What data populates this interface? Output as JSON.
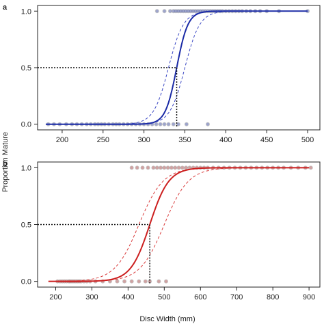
{
  "figure": {
    "shared_ylabel": "Proportion Mature",
    "shared_xlabel": "Disc Width (mm)"
  },
  "chart_data": [
    {
      "panel": "a",
      "type": "scatter",
      "title": "",
      "xlabel": "",
      "ylabel": "",
      "xlim": [
        170,
        515
      ],
      "ylim": [
        -0.05,
        1.05
      ],
      "xticks": [
        200,
        250,
        300,
        350,
        400,
        450,
        500
      ],
      "yticks": [
        0.0,
        0.5,
        1.0
      ],
      "tick_labels_y": [
        "0.0",
        "0.5",
        "1.0"
      ],
      "tick_labels_x": [
        "200",
        "250",
        "300",
        "350",
        "400",
        "450",
        "500"
      ],
      "line_color": "#1a2aa6",
      "ci_color": "#3a47c4",
      "point_color": "#6f7fd8",
      "fit_range": [
        180,
        500
      ],
      "logistic": {
        "l50": 340,
        "k": 0.145
      },
      "ci_lower": {
        "l50": 350,
        "k": 0.11
      },
      "ci_upper": {
        "l50": 330,
        "k": 0.11
      },
      "l50_marker": {
        "x": 340,
        "y": 0.5
      },
      "points_immature_x": [
        183,
        190,
        197,
        205,
        212,
        218,
        224,
        230,
        235,
        240,
        244,
        248,
        252,
        257,
        262,
        266,
        270,
        275,
        280,
        285,
        290,
        295,
        300,
        305,
        310,
        315,
        320,
        325,
        330,
        336,
        342,
        352,
        378
      ],
      "points_mature_x": [
        316,
        325,
        332,
        336,
        339,
        342,
        345,
        348,
        351,
        354,
        357,
        360,
        363,
        366,
        369,
        372,
        375,
        378,
        381,
        384,
        387,
        390,
        393,
        396,
        400,
        404,
        408,
        412,
        416,
        420,
        425,
        430,
        436,
        442,
        450,
        465,
        500
      ]
    },
    {
      "panel": "b",
      "type": "scatter",
      "title": "",
      "xlabel": "",
      "ylabel": "",
      "xlim": [
        150,
        930
      ],
      "ylim": [
        -0.05,
        1.05
      ],
      "xticks": [
        200,
        300,
        400,
        500,
        600,
        700,
        800,
        900
      ],
      "yticks": [
        0.0,
        0.5,
        1.0
      ],
      "tick_labels_y": [
        "0.0",
        "0.5",
        "1.0"
      ],
      "tick_labels_x": [
        "200",
        "300",
        "400",
        "500",
        "600",
        "700",
        "800",
        "900"
      ],
      "line_color": "#cc1f1f",
      "ci_color": "#d93a3a",
      "point_color": "#e07a7a",
      "fit_range": [
        180,
        900
      ],
      "logistic": {
        "l50": 460,
        "k": 0.038
      },
      "ci_lower": {
        "l50": 500,
        "k": 0.03
      },
      "ci_upper": {
        "l50": 430,
        "k": 0.03
      },
      "l50_marker": {
        "x": 460,
        "y": 0.5
      },
      "points_immature_x": [
        205,
        212,
        218,
        224,
        230,
        236,
        240,
        245,
        250,
        255,
        260,
        265,
        270,
        278,
        286,
        295,
        310,
        330,
        350,
        370,
        390,
        410,
        430,
        448,
        460,
        485,
        505
      ],
      "points_mature_x": [
        410,
        425,
        440,
        455,
        470,
        480,
        490,
        500,
        510,
        520,
        530,
        540,
        550,
        560,
        570,
        580,
        590,
        600,
        610,
        620,
        635,
        650,
        665,
        680,
        695,
        710,
        725,
        740,
        755,
        770,
        785,
        800,
        815,
        830,
        850,
        870,
        890,
        905
      ]
    }
  ]
}
